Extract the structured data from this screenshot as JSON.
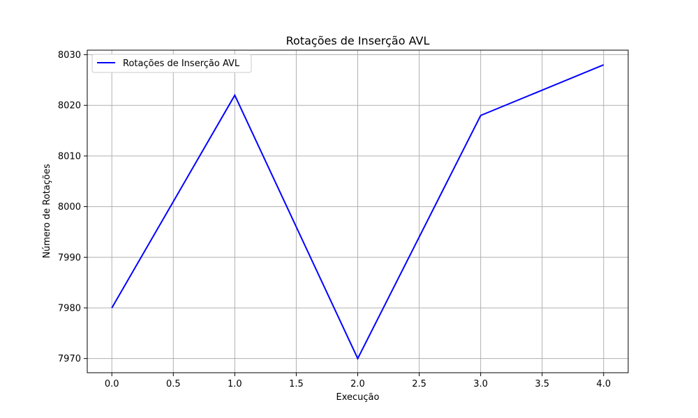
{
  "chart_data": {
    "type": "line",
    "title": "Rotações de Inserção AVL",
    "xlabel": "Execução",
    "ylabel": "Número de Rotações",
    "xlim": [
      -0.2,
      4.2
    ],
    "ylim": [
      7967.2,
      8030.9
    ],
    "xticks": [
      0.0,
      0.5,
      1.0,
      1.5,
      2.0,
      2.5,
      3.0,
      3.5,
      4.0
    ],
    "xtick_labels": [
      "0.0",
      "0.5",
      "1.0",
      "1.5",
      "2.0",
      "2.5",
      "3.0",
      "3.5",
      "4.0"
    ],
    "yticks": [
      7970,
      7980,
      7990,
      8000,
      8010,
      8020,
      8030
    ],
    "ytick_labels": [
      "7970",
      "7980",
      "7990",
      "8000",
      "8010",
      "8020",
      "8030"
    ],
    "grid": true,
    "legend_position": "top-left",
    "series": [
      {
        "name": "Rotações de Inserção AVL",
        "color": "#0000ff",
        "x": [
          0,
          1,
          2,
          3,
          4
        ],
        "y": [
          7980,
          8022,
          7970,
          8018,
          8028
        ]
      }
    ]
  }
}
